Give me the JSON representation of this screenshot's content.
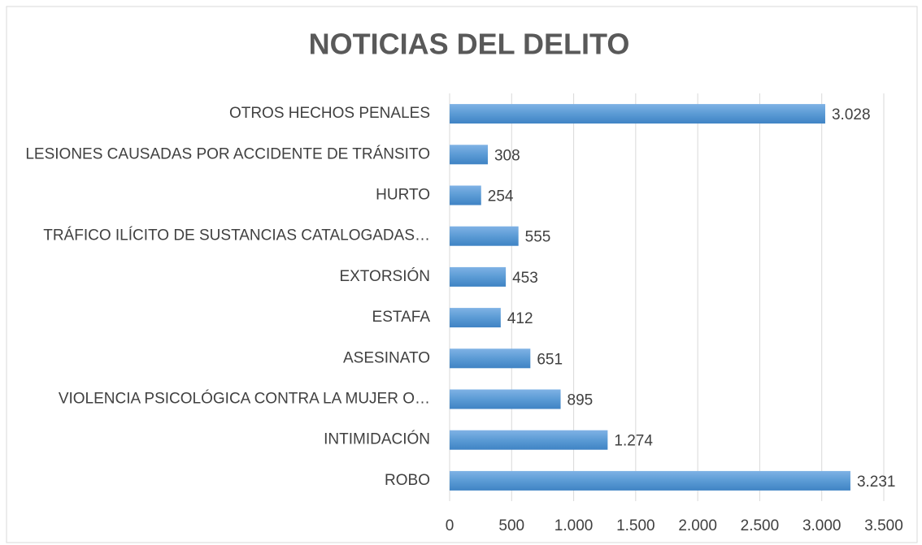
{
  "chart_data": {
    "type": "bar",
    "orientation": "horizontal",
    "title": "NOTICIAS DEL DELITO",
    "categories": [
      "OTROS HECHOS PENALES",
      "LESIONES CAUSADAS POR ACCIDENTE DE TRÁNSITO",
      "HURTO",
      "TRÁFICO ILÍCITO DE SUSTANCIAS CATALOGADAS…",
      "EXTORSIÓN",
      "ESTAFA",
      "ASESINATO",
      "VIOLENCIA PSICOLÓGICA CONTRA LA MUJER O…",
      "INTIMIDACIÓN",
      "ROBO"
    ],
    "values": [
      3028,
      308,
      254,
      555,
      453,
      412,
      651,
      895,
      1274,
      3231
    ],
    "value_labels": [
      "3.028",
      "308",
      "254",
      "555",
      "453",
      "412",
      "651",
      "895",
      "1.274",
      "3.231"
    ],
    "color": "#5b9bd5",
    "xlim": [
      0,
      3500
    ],
    "xticks": [
      0,
      500,
      {
        "value": 1000,
        "label": "1.000"
      },
      {
        "value": 1500,
        "label": "1.500"
      },
      {
        "value": 2000,
        "label": "2.000"
      },
      {
        "value": 2500,
        "label": "2.500"
      },
      {
        "value": 3000,
        "label": "3.000"
      },
      {
        "value": 3500,
        "label": "3.500"
      }
    ],
    "grid": true
  }
}
